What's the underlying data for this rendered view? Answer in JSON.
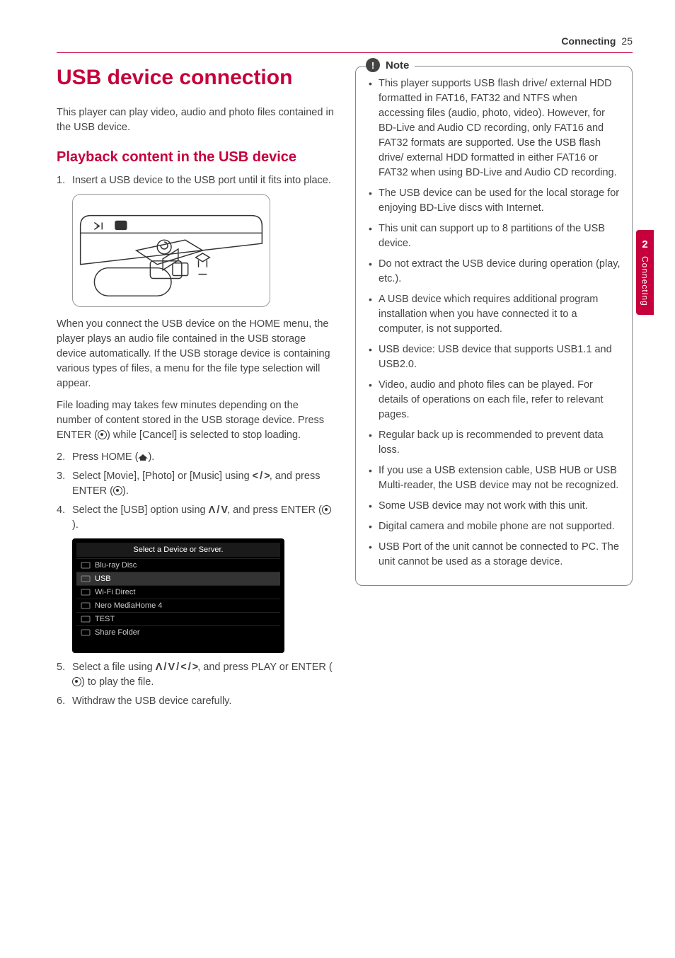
{
  "header": {
    "section": "Connecting",
    "page": "25"
  },
  "sideTab": {
    "number": "2",
    "label": "Connecting"
  },
  "left": {
    "h1": "USB device connection",
    "intro": "This player can play video, audio and photo files contained in the USB device.",
    "h2": "Playback content in the USB device",
    "step1": "Insert a USB device to the USB port until it fits into place.",
    "afterFig1": "When you connect the USB device on the HOME menu, the player plays an audio file contained in the USB storage device automatically. If the USB storage device is containing various types of files, a menu for the file type selection will appear.",
    "afterFig2_a": "File loading may takes few minutes depending on the number of content stored in the USB storage device. Press ENTER (",
    "afterFig2_b": ") while [Cancel] is selected to stop loading.",
    "step2_a": "Press HOME (",
    "step2_b": ").",
    "step3_a": "Select [Movie], [Photo] or [Music] using ",
    "step3_arrows": "< / >",
    "step3_b": ", and press ENTER (",
    "step3_c": ").",
    "step4_a": "Select the [USB] option using ",
    "step4_arrows": "Λ / V",
    "step4_b": ", and press ENTER (",
    "step4_c": ").",
    "screenshot": {
      "title": "Select a Device or Server.",
      "rows": [
        "Blu-ray Disc",
        "USB",
        "Wi-Fi Direct",
        "Nero MediaHome 4",
        "TEST",
        "Share Folder"
      ],
      "selectedIndex": 1
    },
    "step5_a": "Select a file using ",
    "step5_arrows": "Λ / V / < / >",
    "step5_b": ", and press PLAY or ENTER (",
    "step5_c": ") to play the file.",
    "step6": "Withdraw the USB device carefully."
  },
  "note": {
    "title": "Note",
    "items": [
      "This player supports USB flash drive/ external HDD formatted in FAT16, FAT32 and NTFS when accessing files (audio, photo, video). However, for BD-Live and Audio CD recording, only FAT16 and FAT32 formats are supported. Use the USB flash drive/ external HDD formatted in either FAT16 or FAT32 when using BD-Live and Audio CD recording.",
      "The USB device can be used for the local storage for enjoying BD-Live discs with Internet.",
      "This unit can support up to 8 partitions of the USB device.",
      "Do not extract the USB device during operation (play, etc.).",
      "A USB device which requires additional program installation when you have connected it to a computer, is not supported.",
      "USB device: USB device that supports USB1.1 and USB2.0.",
      "Video, audio and photo files can be played. For details of operations on each file, refer to relevant pages.",
      "Regular back up is recommended to prevent data loss.",
      "If you use a USB extension cable, USB HUB or USB Multi-reader, the USB device may not be recognized.",
      "Some USB device may not work with this unit.",
      "Digital camera and mobile phone are not supported.",
      "USB Port of the unit cannot be connected to PC. The unit cannot be used as a storage device."
    ]
  }
}
